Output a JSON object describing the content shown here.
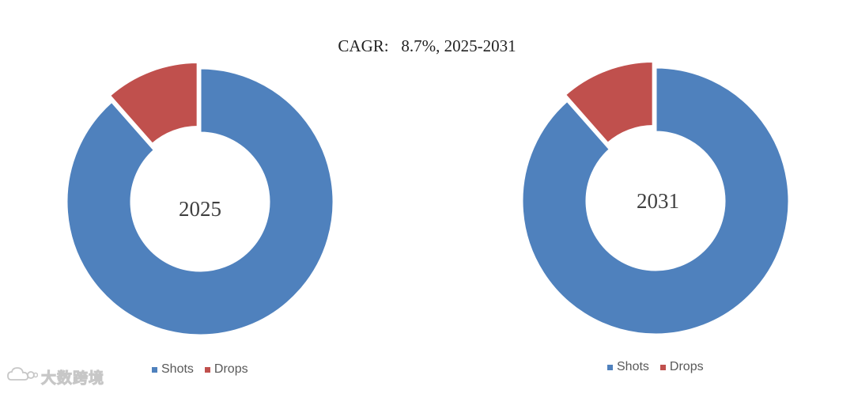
{
  "title": "CAGR:   8.7%, 2025-2031",
  "colors": {
    "shots": "#4F81BD",
    "drops": "#C0504D"
  },
  "watermark": {
    "text": "大数跨境",
    "icon": "cloud-logo-icon"
  },
  "chart_data": [
    {
      "type": "pie",
      "variant": "donut",
      "center_label": "2025",
      "categories": [
        "Shots",
        "Drops"
      ],
      "values": [
        88.5,
        11.5
      ],
      "exploded": "Drops",
      "legend": "bottom"
    },
    {
      "type": "pie",
      "variant": "donut",
      "center_label": "2031",
      "categories": [
        "Shots",
        "Drops"
      ],
      "values": [
        88.5,
        11.5
      ],
      "exploded": "Drops",
      "legend": "bottom"
    }
  ]
}
